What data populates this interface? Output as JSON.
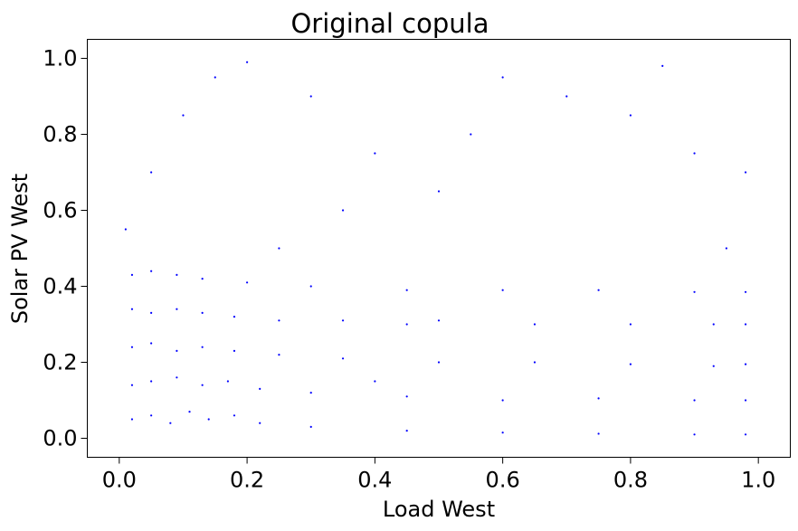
{
  "chart_data": {
    "type": "scatter",
    "title": "Original copula",
    "xlabel": "Load West",
    "ylabel": "Solar PV West",
    "xlim": [
      -0.05,
      1.05
    ],
    "ylim": [
      -0.05,
      1.05
    ],
    "xticks": [
      0.0,
      0.2,
      0.4,
      0.6,
      0.8,
      1.0
    ],
    "xtick_labels": [
      "0.0",
      "0.2",
      "0.4",
      "0.6",
      "0.8",
      "1.0"
    ],
    "yticks": [
      0.0,
      0.2,
      0.4,
      0.6,
      0.8,
      1.0
    ],
    "ytick_labels": [
      "0.0",
      "0.2",
      "0.4",
      "0.6",
      "0.8",
      "1.0"
    ],
    "grid": false,
    "marker_color": "#0000ff",
    "series": [
      {
        "points": [
          [
            0.02,
            0.05
          ],
          [
            0.05,
            0.06
          ],
          [
            0.08,
            0.04
          ],
          [
            0.11,
            0.07
          ],
          [
            0.14,
            0.05
          ],
          [
            0.18,
            0.06
          ],
          [
            0.22,
            0.04
          ],
          [
            0.3,
            0.03
          ],
          [
            0.45,
            0.02
          ],
          [
            0.6,
            0.015
          ],
          [
            0.75,
            0.012
          ],
          [
            0.9,
            0.01
          ],
          [
            0.98,
            0.01
          ],
          [
            0.02,
            0.14
          ],
          [
            0.05,
            0.15
          ],
          [
            0.09,
            0.16
          ],
          [
            0.13,
            0.14
          ],
          [
            0.17,
            0.15
          ],
          [
            0.22,
            0.13
          ],
          [
            0.3,
            0.12
          ],
          [
            0.45,
            0.11
          ],
          [
            0.6,
            0.1
          ],
          [
            0.75,
            0.105
          ],
          [
            0.9,
            0.1
          ],
          [
            0.98,
            0.1
          ],
          [
            0.02,
            0.24
          ],
          [
            0.05,
            0.25
          ],
          [
            0.09,
            0.23
          ],
          [
            0.13,
            0.24
          ],
          [
            0.18,
            0.23
          ],
          [
            0.25,
            0.22
          ],
          [
            0.35,
            0.21
          ],
          [
            0.5,
            0.2
          ],
          [
            0.65,
            0.2
          ],
          [
            0.8,
            0.195
          ],
          [
            0.93,
            0.19
          ],
          [
            0.98,
            0.195
          ],
          [
            0.02,
            0.34
          ],
          [
            0.05,
            0.33
          ],
          [
            0.09,
            0.34
          ],
          [
            0.13,
            0.33
          ],
          [
            0.18,
            0.32
          ],
          [
            0.25,
            0.31
          ],
          [
            0.35,
            0.31
          ],
          [
            0.5,
            0.31
          ],
          [
            0.65,
            0.3
          ],
          [
            0.8,
            0.3
          ],
          [
            0.93,
            0.3
          ],
          [
            0.98,
            0.3
          ],
          [
            0.02,
            0.43
          ],
          [
            0.05,
            0.44
          ],
          [
            0.09,
            0.43
          ],
          [
            0.13,
            0.42
          ],
          [
            0.2,
            0.41
          ],
          [
            0.3,
            0.4
          ],
          [
            0.45,
            0.39
          ],
          [
            0.6,
            0.39
          ],
          [
            0.75,
            0.39
          ],
          [
            0.9,
            0.385
          ],
          [
            0.98,
            0.385
          ],
          [
            0.01,
            0.55
          ],
          [
            0.05,
            0.7
          ],
          [
            0.1,
            0.85
          ],
          [
            0.15,
            0.95
          ],
          [
            0.2,
            0.99
          ],
          [
            0.3,
            0.9
          ],
          [
            0.4,
            0.75
          ],
          [
            0.5,
            0.65
          ],
          [
            0.6,
            0.95
          ],
          [
            0.7,
            0.9
          ],
          [
            0.8,
            0.85
          ],
          [
            0.9,
            0.75
          ],
          [
            0.98,
            0.7
          ],
          [
            0.95,
            0.5
          ],
          [
            0.45,
            0.3
          ],
          [
            0.4,
            0.15
          ],
          [
            0.35,
            0.6
          ],
          [
            0.25,
            0.5
          ],
          [
            0.55,
            0.8
          ],
          [
            0.85,
            0.98
          ]
        ]
      }
    ]
  }
}
